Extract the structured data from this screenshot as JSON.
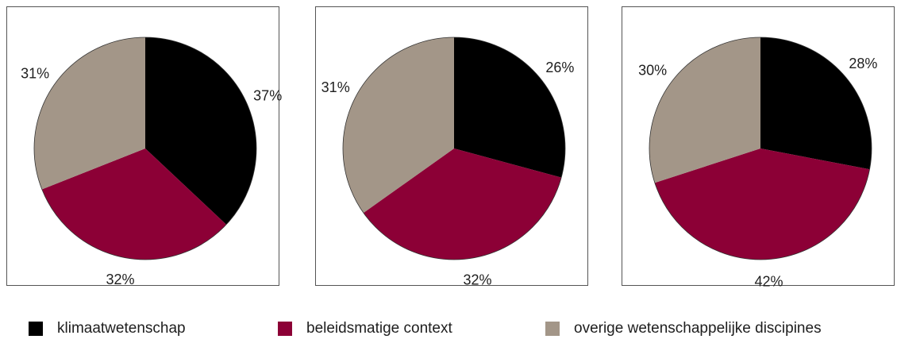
{
  "colors": {
    "klimaatwetenschap": "#000000",
    "beleidsmatige_context": "#8c0036",
    "overige": "#a39688"
  },
  "legend": [
    {
      "label": "klimaatwetenschap",
      "color": "#000000"
    },
    {
      "label": "beleidsmatige context",
      "color": "#8c0036"
    },
    {
      "label": "overige wetenschappelijke discipines",
      "color": "#a39688"
    }
  ],
  "chart_data": [
    {
      "type": "pie",
      "categories": [
        "klimaatwetenschap",
        "beleidsmatige context",
        "overige wetenschappelijke discipines"
      ],
      "values": [
        37,
        32,
        31
      ],
      "labels": [
        "37%",
        "32%",
        "31%"
      ],
      "colors": [
        "#000000",
        "#8c0036",
        "#a39688"
      ]
    },
    {
      "type": "pie",
      "categories": [
        "klimaatwetenschap",
        "beleidsmatige context",
        "overige wetenschappelijke discipines"
      ],
      "values": [
        26,
        32,
        31
      ],
      "labels": [
        "26%",
        "32%",
        "31%"
      ],
      "colors": [
        "#000000",
        "#8c0036",
        "#a39688"
      ]
    },
    {
      "type": "pie",
      "categories": [
        "klimaatwetenschap",
        "beleidsmatige context",
        "overige wetenschappelijke discipines"
      ],
      "values": [
        28,
        42,
        30
      ],
      "labels": [
        "28%",
        "42%",
        "30%"
      ],
      "colors": [
        "#000000",
        "#8c0036",
        "#a39688"
      ]
    }
  ]
}
